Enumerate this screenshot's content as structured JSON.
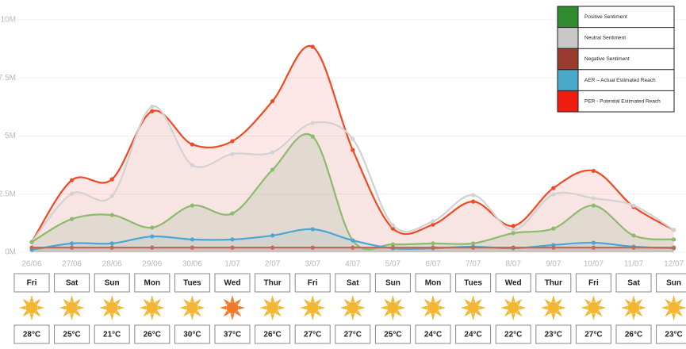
{
  "chart_data": {
    "type": "area",
    "categories": [
      "26/06",
      "27/06",
      "28/06",
      "29/06",
      "30/06",
      "1/07",
      "2/07",
      "3/07",
      "4/07",
      "5/07",
      "6/07",
      "7/07",
      "8/07",
      "9/07",
      "10/07",
      "11/07",
      "12/07"
    ],
    "ylim": [
      0,
      10
    ],
    "yticks": [
      {
        "value": 0,
        "label": "0M"
      },
      {
        "value": 2.5,
        "label": "2.5M"
      },
      {
        "value": 5,
        "label": "5M"
      },
      {
        "value": 7.5,
        "label": "7.5M"
      },
      {
        "value": 10,
        "label": "10M"
      }
    ],
    "grid": true,
    "legend": "top-right",
    "series": [
      {
        "name": "Positive Sentiment",
        "color": "#2e8b2e",
        "line_color": "#8cbb6e",
        "values": [
          0.44,
          1.43,
          1.6,
          1.06,
          2.01,
          1.67,
          3.55,
          4.98,
          0.51,
          0.34,
          0.38,
          0.38,
          0.82,
          1.02,
          2.01,
          0.72,
          0.55
        ]
      },
      {
        "name": "Neutral Sentiment",
        "color": "#c8c8c8",
        "line_color": "#d2d2d2",
        "values": [
          0.44,
          2.52,
          2.42,
          6.27,
          3.75,
          4.23,
          4.3,
          5.56,
          4.88,
          1.16,
          1.33,
          2.46,
          0.96,
          2.49,
          2.32,
          2.01,
          0.96
        ]
      },
      {
        "name": "Negative Sentiment",
        "color": "#9b3a2e",
        "line_color": "#c06a5a",
        "values": [
          0.2,
          0.2,
          0.2,
          0.2,
          0.2,
          0.2,
          0.2,
          0.2,
          0.2,
          0.2,
          0.2,
          0.2,
          0.2,
          0.2,
          0.2,
          0.2,
          0.2
        ]
      },
      {
        "name": "AER – Actual Estimated Reach",
        "color": "#4aa8c8",
        "line_color": "#4aa6d6",
        "values": [
          0.1,
          0.38,
          0.38,
          0.68,
          0.55,
          0.55,
          0.72,
          0.99,
          0.51,
          0.17,
          0.17,
          0.24,
          0.17,
          0.31,
          0.41,
          0.24,
          0.17
        ]
      },
      {
        "name": "PER - Potential Estimated Reach",
        "color": "#f01c10",
        "line_color": "#f04a22",
        "values": [
          0.44,
          3.1,
          3.14,
          6.07,
          4.64,
          4.78,
          6.5,
          8.84,
          4.4,
          1.02,
          1.19,
          2.18,
          1.13,
          2.76,
          3.5,
          1.95,
          0.96
        ]
      }
    ]
  },
  "weather": {
    "days": [
      "Fri",
      "Sat",
      "Sun",
      "Mon",
      "Tues",
      "Wed",
      "Thur",
      "Fri",
      "Sat",
      "Sun",
      "Mon",
      "Tues",
      "Wed",
      "Thur",
      "Fri",
      "Sat",
      "Sun"
    ],
    "temperatures": [
      "28°C",
      "25°C",
      "21°C",
      "26°C",
      "30°C",
      "37°C",
      "26°C",
      "27°C",
      "27°C",
      "25°C",
      "24°C",
      "24°C",
      "22°C",
      "23°C",
      "27°C",
      "26°C",
      "23°C"
    ],
    "icon_colors": [
      "#f2b632",
      "#f2b632",
      "#f2b632",
      "#f2b632",
      "#f2b632",
      "#f07a2a",
      "#f2b632",
      "#f2b632",
      "#f2b632",
      "#f2b632",
      "#f2b632",
      "#f2b632",
      "#f2b632",
      "#f2b632",
      "#f2b632",
      "#f2b632",
      "#f2b632"
    ]
  }
}
